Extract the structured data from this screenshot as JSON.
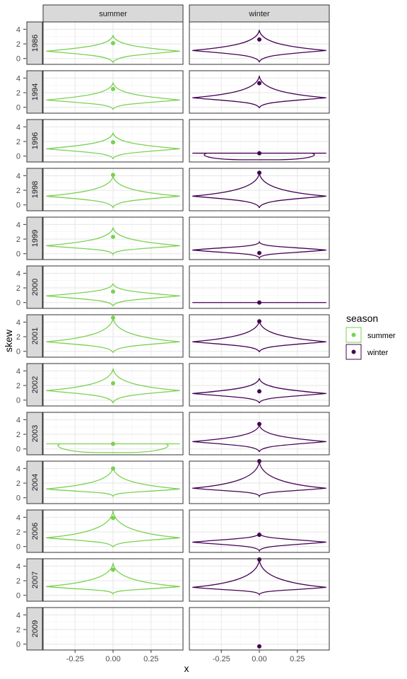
{
  "chart_data": {
    "type": "violin",
    "facet_columns": [
      "summer",
      "winter"
    ],
    "facet_rows": [
      "1986",
      "1994",
      "1996",
      "1998",
      "1999",
      "2000",
      "2001",
      "2002",
      "2003",
      "2004",
      "2006",
      "2007",
      "2009"
    ],
    "xlabel": "x",
    "ylabel": "skew",
    "x_ticks": [
      -0.25,
      0.0,
      0.25
    ],
    "x_tick_labels": [
      "-0.25",
      "0.00",
      "0.25"
    ],
    "xlim": [
      -0.46,
      0.46
    ],
    "y_ticks": [
      0,
      2,
      4
    ],
    "y_tick_labels": [
      "0",
      "2",
      "4"
    ],
    "ylim": [
      -0.8,
      5.0
    ],
    "grid": true,
    "legend": {
      "title": "season",
      "position": "right",
      "entries": [
        {
          "label": "summer",
          "color": "#7AD151"
        },
        {
          "label": "winter",
          "color": "#440154"
        }
      ]
    },
    "series": [
      {
        "name": "summer",
        "color": "#7AD151"
      },
      {
        "name": "winter",
        "color": "#440154"
      }
    ],
    "panels": [
      {
        "year": "1986",
        "season": "summer",
        "type": "violin",
        "point": 2.1,
        "min": -0.6,
        "max": 3.2,
        "mode": 1.0
      },
      {
        "year": "1986",
        "season": "winter",
        "type": "violin",
        "point": 2.6,
        "min": -0.5,
        "max": 3.9,
        "mode": 1.1
      },
      {
        "year": "1994",
        "season": "summer",
        "type": "violin",
        "point": 2.5,
        "min": -0.3,
        "max": 3.4,
        "mode": 1.0
      },
      {
        "year": "1994",
        "season": "winter",
        "type": "violin",
        "point": 3.3,
        "min": -0.1,
        "max": 4.3,
        "mode": 1.3
      },
      {
        "year": "1996",
        "season": "summer",
        "type": "violin",
        "point": 1.9,
        "min": -0.4,
        "max": 3.2,
        "mode": 1.0
      },
      {
        "year": "1996",
        "season": "winter",
        "type": "loop",
        "point": 0.4,
        "min": -0.4,
        "max": 0.4,
        "mode": 0.4
      },
      {
        "year": "1998",
        "season": "summer",
        "type": "violin",
        "point": 4.1,
        "min": -0.4,
        "max": 4.0,
        "mode": 1.2
      },
      {
        "year": "1998",
        "season": "winter",
        "type": "violin",
        "point": 4.4,
        "min": -0.4,
        "max": 4.4,
        "mode": 1.2
      },
      {
        "year": "1999",
        "season": "summer",
        "type": "violin",
        "point": 2.3,
        "min": -0.1,
        "max": 3.6,
        "mode": 1.1
      },
      {
        "year": "1999",
        "season": "winter",
        "type": "violin",
        "point": 0.1,
        "min": -0.6,
        "max": 1.6,
        "mode": 0.5
      },
      {
        "year": "2000",
        "season": "summer",
        "type": "violin",
        "point": 1.5,
        "min": -0.5,
        "max": 2.6,
        "mode": 0.9
      },
      {
        "year": "2000",
        "season": "winter",
        "type": "line",
        "point": 0.0,
        "min": 0.0,
        "max": 0.0,
        "mode": 0.0
      },
      {
        "year": "2001",
        "season": "summer",
        "type": "violin",
        "point": 4.6,
        "min": -0.2,
        "max": 4.6,
        "mode": 1.3
      },
      {
        "year": "2001",
        "season": "winter",
        "type": "violin",
        "point": 4.1,
        "min": -0.1,
        "max": 4.2,
        "mode": 1.3
      },
      {
        "year": "2002",
        "season": "summer",
        "type": "violin",
        "point": 2.3,
        "min": -0.4,
        "max": 4.3,
        "mode": 1.3
      },
      {
        "year": "2002",
        "season": "winter",
        "type": "violin",
        "point": 1.2,
        "min": -0.4,
        "max": 3.0,
        "mode": 0.9
      },
      {
        "year": "2003",
        "season": "summer",
        "type": "loop",
        "point": 0.7,
        "min": -0.4,
        "max": 0.7,
        "mode": 0.7
      },
      {
        "year": "2003",
        "season": "winter",
        "type": "violin",
        "point": 3.4,
        "min": -0.4,
        "max": 3.3,
        "mode": 1.0
      },
      {
        "year": "2004",
        "season": "summer",
        "type": "violin",
        "point": 4.0,
        "min": 0.2,
        "max": 4.2,
        "mode": 1.2
      },
      {
        "year": "2004",
        "season": "winter",
        "type": "violin",
        "point": 5.0,
        "min": 0.2,
        "max": 5.0,
        "mode": 1.3
      },
      {
        "year": "2006",
        "season": "summer",
        "type": "violin",
        "point": 3.9,
        "min": -0.1,
        "max": 4.9,
        "mode": 1.2
      },
      {
        "year": "2006",
        "season": "winter",
        "type": "violin",
        "point": 1.6,
        "min": -0.6,
        "max": 1.8,
        "mode": 0.6
      },
      {
        "year": "2007",
        "season": "summer",
        "type": "violin",
        "point": 3.5,
        "min": 0.2,
        "max": 4.4,
        "mode": 1.2
      },
      {
        "year": "2007",
        "season": "winter",
        "type": "violin",
        "point": 4.9,
        "min": 0.1,
        "max": 4.9,
        "mode": 1.1
      },
      {
        "year": "2009",
        "season": "summer",
        "type": "empty",
        "point": null,
        "min": null,
        "max": null,
        "mode": null
      },
      {
        "year": "2009",
        "season": "winter",
        "type": "point_only",
        "point": -0.3,
        "min": null,
        "max": null,
        "mode": null
      }
    ]
  }
}
